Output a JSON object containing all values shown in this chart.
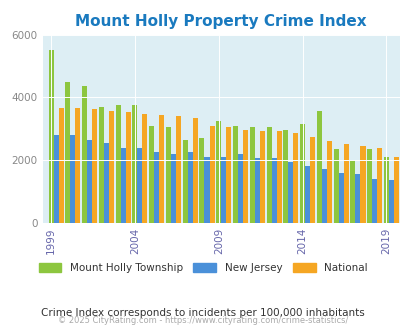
{
  "title": "Mount Holly Property Crime Index",
  "title_color": "#1a7abf",
  "years": [
    1999,
    2000,
    2001,
    2002,
    2003,
    2004,
    2005,
    2006,
    2007,
    2008,
    2009,
    2010,
    2011,
    2012,
    2013,
    2014,
    2015,
    2016,
    2017,
    2018,
    2019,
    2020
  ],
  "mount_holly": [
    5500,
    4500,
    4350,
    3700,
    3750,
    3750,
    3100,
    3050,
    2650,
    2700,
    3250,
    3100,
    3050,
    3050,
    2950,
    3150,
    3550,
    2350,
    2000,
    2350,
    2100,
    null
  ],
  "new_jersey": [
    2800,
    2800,
    2650,
    2550,
    2400,
    2380,
    2250,
    2200,
    2250,
    2100,
    2100,
    2200,
    2050,
    2050,
    1950,
    1800,
    1700,
    1600,
    1550,
    1400,
    1350,
    null
  ],
  "national": [
    3650,
    3650,
    3620,
    3580,
    3520,
    3480,
    3450,
    3400,
    3330,
    3100,
    3050,
    2970,
    2940,
    2920,
    2850,
    2750,
    2600,
    2500,
    2460,
    2400,
    2100,
    null
  ],
  "color_mount_holly": "#8dc63f",
  "color_nj": "#4a90d9",
  "color_national": "#f5a623",
  "bg_color": "#ddeef4",
  "ylim": [
    0,
    6000
  ],
  "yticks": [
    0,
    2000,
    4000,
    6000
  ],
  "footnote": "Crime Index corresponds to incidents per 100,000 inhabitants",
  "copyright": "© 2025 CityRating.com - https://www.cityrating.com/crime-statistics/",
  "legend_labels": [
    "Mount Holly Township",
    "New Jersey",
    "National"
  ],
  "xtick_years": [
    1999,
    2004,
    2009,
    2014,
    2019
  ]
}
